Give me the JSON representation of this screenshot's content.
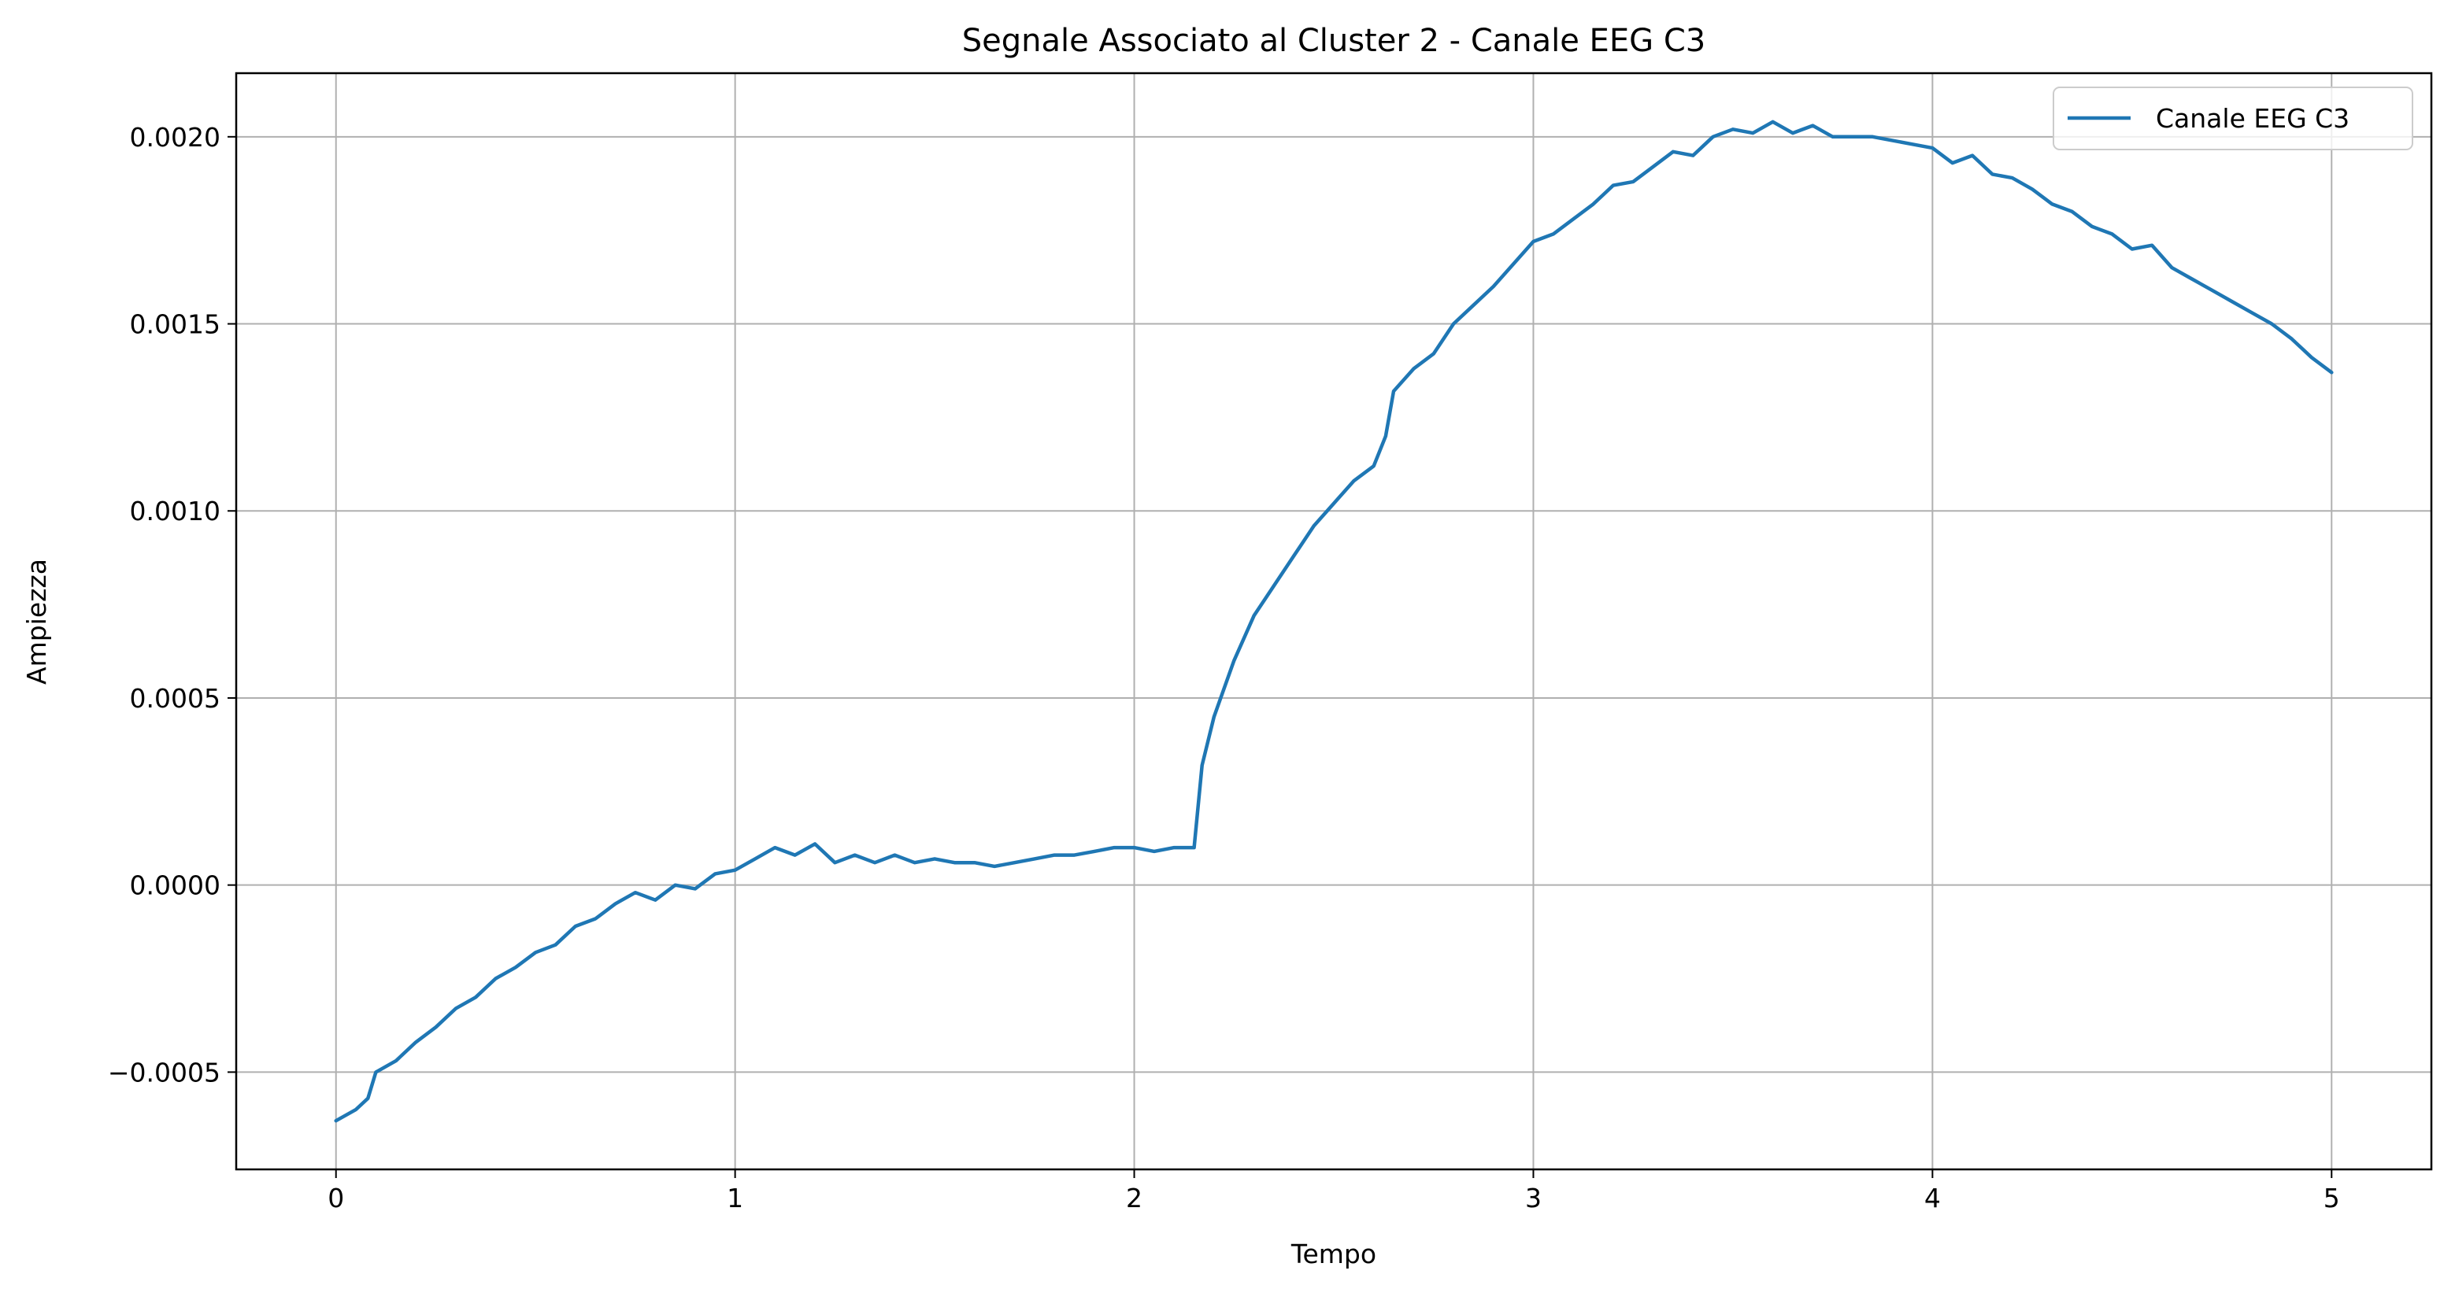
{
  "chart_data": {
    "type": "line",
    "title": "Segnale Associato al Cluster 2 - Canale EEG C3",
    "xlabel": "Tempo",
    "ylabel": "Ampiezza",
    "xlim": [
      -0.25,
      5.25
    ],
    "ylim": [
      -0.00076,
      0.00217
    ],
    "xticks": [
      0,
      1,
      2,
      3,
      4,
      5
    ],
    "xtick_labels": [
      "0",
      "1",
      "2",
      "3",
      "4",
      "5"
    ],
    "yticks": [
      -0.0005,
      0.0,
      0.0005,
      0.001,
      0.0015,
      0.002
    ],
    "ytick_labels": [
      "−0.0005",
      "0.0000",
      "0.0005",
      "0.0010",
      "0.0015",
      "0.0020"
    ],
    "grid": true,
    "legend_position": "top-right",
    "line_color": "#1f77b4",
    "series": [
      {
        "name": "Canale EEG C3",
        "x": [
          0.0,
          0.05,
          0.08,
          0.1,
          0.15,
          0.2,
          0.25,
          0.3,
          0.35,
          0.4,
          0.45,
          0.5,
          0.55,
          0.58,
          0.6,
          0.65,
          0.7,
          0.75,
          0.8,
          0.85,
          0.9,
          0.95,
          1.0,
          1.05,
          1.1,
          1.15,
          1.2,
          1.25,
          1.3,
          1.35,
          1.4,
          1.45,
          1.5,
          1.55,
          1.6,
          1.65,
          1.7,
          1.75,
          1.8,
          1.85,
          1.9,
          1.95,
          2.0,
          2.05,
          2.1,
          2.15,
          2.17,
          2.2,
          2.25,
          2.3,
          2.35,
          2.4,
          2.45,
          2.5,
          2.55,
          2.6,
          2.63,
          2.65,
          2.7,
          2.75,
          2.8,
          2.85,
          2.9,
          2.95,
          3.0,
          3.05,
          3.1,
          3.15,
          3.2,
          3.25,
          3.3,
          3.35,
          3.4,
          3.45,
          3.5,
          3.55,
          3.6,
          3.65,
          3.7,
          3.75,
          3.8,
          3.85,
          3.9,
          3.95,
          4.0,
          4.05,
          4.1,
          4.15,
          4.2,
          4.25,
          4.3,
          4.35,
          4.4,
          4.45,
          4.5,
          4.55,
          4.6,
          4.65,
          4.7,
          4.75,
          4.8,
          4.85,
          4.9,
          4.95,
          5.0
        ],
        "y": [
          -0.00063,
          -0.0006,
          -0.00057,
          -0.0005,
          -0.00047,
          -0.00042,
          -0.00038,
          -0.00033,
          -0.0003,
          -0.00025,
          -0.00022,
          -0.00018,
          -0.00016,
          -0.00013,
          -0.00011,
          -9e-05,
          -5e-05,
          -2e-05,
          -4e-05,
          0.0,
          -1e-05,
          3e-05,
          4e-05,
          7e-05,
          0.0001,
          8e-05,
          0.00011,
          6e-05,
          8e-05,
          6e-05,
          8e-05,
          6e-05,
          7e-05,
          6e-05,
          6e-05,
          5e-05,
          6e-05,
          7e-05,
          8e-05,
          8e-05,
          9e-05,
          0.0001,
          0.0001,
          9e-05,
          0.0001,
          0.0001,
          0.00032,
          0.00045,
          0.0006,
          0.00072,
          0.0008,
          0.00088,
          0.00096,
          0.00102,
          0.00108,
          0.00112,
          0.0012,
          0.00132,
          0.00138,
          0.00142,
          0.0015,
          0.00155,
          0.0016,
          0.00166,
          0.00172,
          0.00174,
          0.00178,
          0.00182,
          0.00187,
          0.00188,
          0.00192,
          0.00196,
          0.00195,
          0.002,
          0.00202,
          0.00201,
          0.00204,
          0.00201,
          0.00203,
          0.002,
          0.002,
          0.002,
          0.00199,
          0.00198,
          0.00197,
          0.00193,
          0.00195,
          0.0019,
          0.00189,
          0.00186,
          0.00182,
          0.0018,
          0.00176,
          0.00174,
          0.0017,
          0.00171,
          0.00165,
          0.00162,
          0.00159,
          0.00156,
          0.00153,
          0.0015,
          0.00146,
          0.00141,
          0.00137
        ]
      }
    ]
  }
}
